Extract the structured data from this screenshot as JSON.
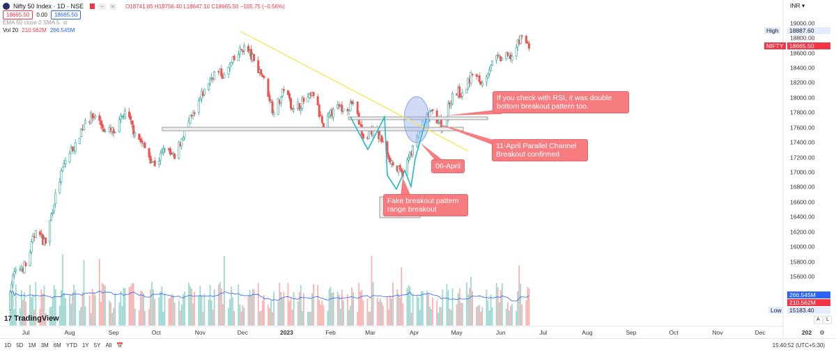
{
  "header": {
    "symbol": "Nifty 50 Index · 1D · NSE",
    "ohlc": "O18741.85 H18756.40 L18647.10 C18665.50 −105.75 (−0.56%)",
    "sell_price": "18665.50",
    "spread": "0.00",
    "buy_price": "18665.50",
    "indicators": "EMA 50 close 0 SMA 5",
    "volume_label": "Vol 20",
    "volume_value": "210.562M",
    "volume_ma": "266.545M",
    "btn_minus": "−",
    "btn_approx": "≈"
  },
  "price_axis": {
    "currency": "INR ▾",
    "high_label": "High",
    "high_value": "18887.60",
    "symbol_tag": "NIFTY",
    "last_price": "18665.50",
    "low_label": "Low",
    "low_value": "15183.40",
    "vol_ma_tag": "266.545M",
    "vol_tag": "210.562M",
    "auto_btn": "A",
    "log_btn": "L"
  },
  "time_axis": {
    "right_label": "202",
    "time": "15:40:52 (UTC+5:30)"
  },
  "toolbar": {
    "ranges": [
      "1D",
      "5D",
      "1M",
      "3M",
      "6M",
      "YTD",
      "1Y",
      "5Y",
      "All"
    ]
  },
  "brand": "TradingView",
  "colors": {
    "up": "#26a69a",
    "down": "#ef5350",
    "trendline": "#f5e663",
    "zigzag": "#22b5c9",
    "callout": "#f77c80",
    "ellipse": "#c9d6f7"
  },
  "annotations": {
    "rsi": "If you check with RSI, it was double bottom breakout pattern too.",
    "channel": "11-April Parallel Channel Breakout confirmed",
    "april": "06-April",
    "fake": "Fake breakout pattern range breakout"
  },
  "chart_data": {
    "type": "candlestick",
    "title": "Nifty 50 Index · 1D · NSE",
    "ylim": [
      15400,
      19200
    ],
    "y_ticks": [
      15600,
      15800,
      16000,
      16200,
      16400,
      16600,
      16800,
      17000,
      17200,
      17400,
      17600,
      17800,
      18000,
      18200,
      18400,
      18600,
      18800,
      19000
    ],
    "x_ticks": [
      "Jul",
      "Aug",
      "Sep",
      "Oct",
      "Nov",
      "Dec",
      "2023",
      "Feb",
      "Mar",
      "Apr",
      "May",
      "Jun",
      "Jul",
      "Aug",
      "Sep",
      "Oct",
      "Nov",
      "Dec"
    ],
    "grid": false,
    "weekly_closes_approx": [
      [
        "2022-06-17",
        15290
      ],
      [
        "2022-06-24",
        15700
      ],
      [
        "2022-07-01",
        15750
      ],
      [
        "2022-07-08",
        16220
      ],
      [
        "2022-07-15",
        16050
      ],
      [
        "2022-07-22",
        16720
      ],
      [
        "2022-07-29",
        17160
      ],
      [
        "2022-08-05",
        17400
      ],
      [
        "2022-08-12",
        17700
      ],
      [
        "2022-08-19",
        17760
      ],
      [
        "2022-08-26",
        17560
      ],
      [
        "2022-09-02",
        17540
      ],
      [
        "2022-09-09",
        17830
      ],
      [
        "2022-09-16",
        17530
      ],
      [
        "2022-09-23",
        17330
      ],
      [
        "2022-09-30",
        17090
      ],
      [
        "2022-10-07",
        17310
      ],
      [
        "2022-10-14",
        17185
      ],
      [
        "2022-10-21",
        17575
      ],
      [
        "2022-10-28",
        17790
      ],
      [
        "2022-11-04",
        18120
      ],
      [
        "2022-11-11",
        18350
      ],
      [
        "2022-11-18",
        18310
      ],
      [
        "2022-11-25",
        18510
      ],
      [
        "2022-12-02",
        18700
      ],
      [
        "2022-12-09",
        18500
      ],
      [
        "2022-12-16",
        18270
      ],
      [
        "2022-12-23",
        17800
      ],
      [
        "2022-12-30",
        18100
      ],
      [
        "2023-01-06",
        17860
      ],
      [
        "2023-01-13",
        17950
      ],
      [
        "2023-01-20",
        18030
      ],
      [
        "2023-01-27",
        17600
      ],
      [
        "2023-02-03",
        17850
      ],
      [
        "2023-02-10",
        17860
      ],
      [
        "2023-02-17",
        17940
      ],
      [
        "2023-02-24",
        17460
      ],
      [
        "2023-03-03",
        17590
      ],
      [
        "2023-03-10",
        17410
      ],
      [
        "2023-03-17",
        17100
      ],
      [
        "2023-03-24",
        16950
      ],
      [
        "2023-03-31",
        17360
      ],
      [
        "2023-04-06",
        17600
      ],
      [
        "2023-04-13",
        17830
      ],
      [
        "2023-04-21",
        17620
      ],
      [
        "2023-04-28",
        18060
      ],
      [
        "2023-05-05",
        18070
      ],
      [
        "2023-05-12",
        18310
      ],
      [
        "2023-05-19",
        18200
      ],
      [
        "2023-05-26",
        18500
      ],
      [
        "2023-06-02",
        18530
      ],
      [
        "2023-06-09",
        18560
      ],
      [
        "2023-06-16",
        18830
      ],
      [
        "2023-06-21",
        18665.5
      ]
    ],
    "high": 18887.6,
    "low": 15183.4,
    "last": 18665.5,
    "volume_last": "210.562M",
    "volume_ma20": "266.545M"
  }
}
